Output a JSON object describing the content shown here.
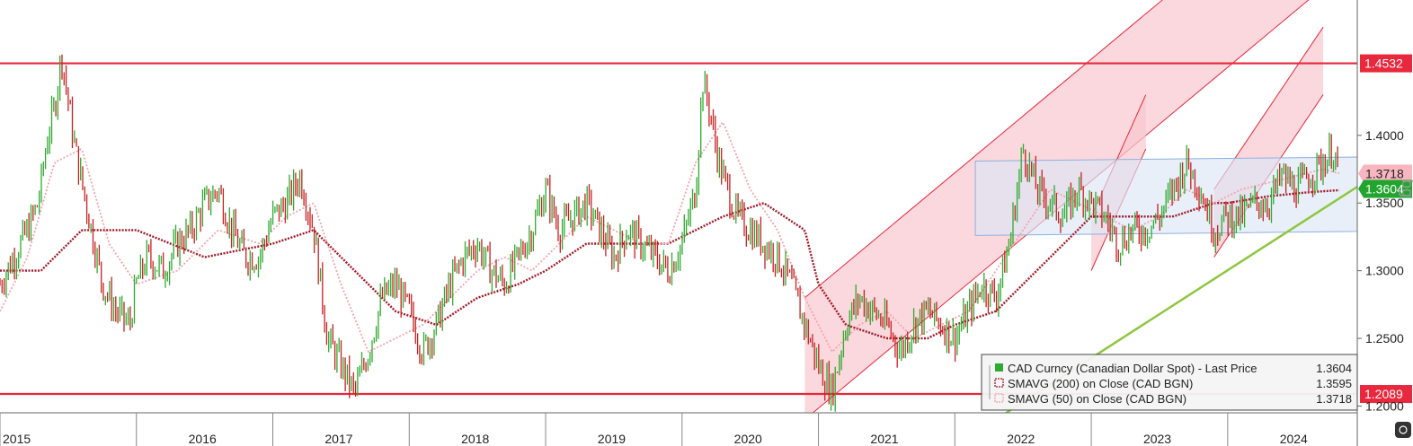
{
  "chart_data": {
    "type": "line",
    "title": "",
    "side_label": "bg",
    "x_ticks": [
      "2015",
      "2016",
      "2017",
      "2018",
      "2019",
      "2020",
      "2021",
      "2022",
      "2023",
      "2024"
    ],
    "xlim": [
      2015.0,
      2024.95
    ],
    "y_ticks": [
      "1.2000",
      "1.2500",
      "1.3000",
      "1.3500",
      "1.4000"
    ],
    "ylim": [
      1.195,
      1.5
    ],
    "horizontal_levels": [
      {
        "value": 1.4532,
        "label": "1.4532",
        "color": "#e8283c"
      },
      {
        "value": 1.2089,
        "label": "1.2089",
        "color": "#e8283c"
      }
    ],
    "price_badges": [
      {
        "value": 1.3718,
        "label": "1.3718",
        "color": "#f9b6c0",
        "text_color": "#222222"
      },
      {
        "value": 1.3604,
        "label": "1.3604",
        "color": "#22a52e",
        "text_color": "#ffffff"
      }
    ],
    "series": [
      {
        "name": "CAD Curncy (Canadian Dollar Spot) - Last Price",
        "value_label": "1.3604",
        "color": "#2eaa2e",
        "down_color": "#c82020",
        "x": [
          2015.0,
          2015.1,
          2015.2,
          2015.28,
          2015.35,
          2015.4,
          2015.45,
          2015.55,
          2015.65,
          2015.75,
          2015.85,
          2015.95,
          2016.0,
          2016.08,
          2016.2,
          2016.3,
          2016.4,
          2016.5,
          2016.6,
          2016.7,
          2016.8,
          2016.9,
          2017.0,
          2017.1,
          2017.2,
          2017.3,
          2017.4,
          2017.5,
          2017.6,
          2017.7,
          2017.8,
          2017.9,
          2018.0,
          2018.1,
          2018.2,
          2018.3,
          2018.4,
          2018.5,
          2018.6,
          2018.7,
          2018.8,
          2018.9,
          2019.0,
          2019.1,
          2019.2,
          2019.3,
          2019.4,
          2019.5,
          2019.6,
          2019.7,
          2019.8,
          2019.9,
          2020.0,
          2020.1,
          2020.15,
          2020.2,
          2020.25,
          2020.3,
          2020.4,
          2020.5,
          2020.6,
          2020.7,
          2020.8,
          2020.9,
          2021.0,
          2021.1,
          2021.2,
          2021.3,
          2021.4,
          2021.5,
          2021.6,
          2021.7,
          2021.8,
          2021.9,
          2022.0,
          2022.1,
          2022.2,
          2022.3,
          2022.4,
          2022.5,
          2022.6,
          2022.7,
          2022.8,
          2022.9,
          2023.0,
          2023.1,
          2023.2,
          2023.3,
          2023.4,
          2023.5,
          2023.6,
          2023.7,
          2023.8,
          2023.9,
          2024.0,
          2024.1,
          2024.2,
          2024.3,
          2024.4,
          2024.5,
          2024.6,
          2024.7,
          2024.78,
          2024.82
        ],
        "values": [
          1.29,
          1.31,
          1.33,
          1.35,
          1.4,
          1.42,
          1.46,
          1.39,
          1.34,
          1.29,
          1.27,
          1.26,
          1.29,
          1.31,
          1.3,
          1.32,
          1.33,
          1.35,
          1.36,
          1.33,
          1.31,
          1.31,
          1.34,
          1.35,
          1.37,
          1.33,
          1.25,
          1.23,
          1.21,
          1.24,
          1.28,
          1.29,
          1.27,
          1.24,
          1.26,
          1.29,
          1.31,
          1.32,
          1.3,
          1.29,
          1.31,
          1.33,
          1.36,
          1.33,
          1.34,
          1.35,
          1.33,
          1.31,
          1.33,
          1.32,
          1.31,
          1.3,
          1.32,
          1.36,
          1.44,
          1.42,
          1.39,
          1.37,
          1.34,
          1.33,
          1.32,
          1.31,
          1.29,
          1.26,
          1.23,
          1.21,
          1.26,
          1.28,
          1.27,
          1.26,
          1.24,
          1.26,
          1.27,
          1.26,
          1.25,
          1.27,
          1.29,
          1.28,
          1.32,
          1.39,
          1.36,
          1.35,
          1.34,
          1.36,
          1.35,
          1.34,
          1.32,
          1.33,
          1.33,
          1.34,
          1.36,
          1.38,
          1.36,
          1.33,
          1.34,
          1.34,
          1.35,
          1.35,
          1.37,
          1.36,
          1.37,
          1.38,
          1.39,
          1.3604
        ]
      },
      {
        "name": "SMAVG (200) on Close (CAD BGN)",
        "value_label": "1.3595",
        "color": "#a01828",
        "x": [
          2015.0,
          2015.3,
          2015.6,
          2016.0,
          2016.5,
          2017.0,
          2017.3,
          2017.6,
          2017.9,
          2018.2,
          2018.5,
          2018.8,
          2019.0,
          2019.3,
          2019.6,
          2019.9,
          2020.1,
          2020.3,
          2020.6,
          2020.9,
          2021.0,
          2021.2,
          2021.5,
          2021.8,
          2022.0,
          2022.3,
          2022.6,
          2022.9,
          2023.0,
          2023.3,
          2023.6,
          2023.9,
          2024.0,
          2024.3,
          2024.6,
          2024.82
        ],
        "values": [
          1.3,
          1.3,
          1.33,
          1.33,
          1.31,
          1.32,
          1.33,
          1.3,
          1.27,
          1.26,
          1.28,
          1.29,
          1.3,
          1.32,
          1.32,
          1.32,
          1.33,
          1.34,
          1.35,
          1.33,
          1.29,
          1.26,
          1.25,
          1.25,
          1.26,
          1.27,
          1.3,
          1.33,
          1.34,
          1.34,
          1.34,
          1.35,
          1.35,
          1.355,
          1.358,
          1.3595
        ]
      },
      {
        "name": "SMAVG (50) on Close (CAD BGN)",
        "value_label": "1.3718",
        "color": "#f4a3ae",
        "x": [
          2015.0,
          2015.2,
          2015.4,
          2015.6,
          2015.8,
          2016.0,
          2016.3,
          2016.6,
          2016.9,
          2017.1,
          2017.3,
          2017.5,
          2017.7,
          2017.9,
          2018.1,
          2018.3,
          2018.5,
          2018.7,
          2018.9,
          2019.1,
          2019.3,
          2019.5,
          2019.7,
          2019.9,
          2020.1,
          2020.3,
          2020.5,
          2020.7,
          2020.9,
          2021.1,
          2021.3,
          2021.5,
          2021.7,
          2021.9,
          2022.1,
          2022.3,
          2022.5,
          2022.7,
          2022.9,
          2023.1,
          2023.3,
          2023.5,
          2023.7,
          2023.9,
          2024.1,
          2024.3,
          2024.5,
          2024.7,
          2024.82
        ],
        "values": [
          1.27,
          1.31,
          1.38,
          1.39,
          1.32,
          1.29,
          1.3,
          1.33,
          1.32,
          1.34,
          1.35,
          1.29,
          1.24,
          1.25,
          1.26,
          1.28,
          1.3,
          1.31,
          1.3,
          1.32,
          1.34,
          1.33,
          1.32,
          1.32,
          1.38,
          1.41,
          1.36,
          1.33,
          1.28,
          1.24,
          1.26,
          1.27,
          1.25,
          1.26,
          1.27,
          1.3,
          1.33,
          1.36,
          1.35,
          1.34,
          1.33,
          1.34,
          1.36,
          1.35,
          1.36,
          1.365,
          1.37,
          1.375,
          1.3718
        ]
      }
    ],
    "annotations": [
      {
        "kind": "channel",
        "points": [
          [
            2020.9,
            1.19
          ],
          [
            2024.95,
            1.53
          ]
        ],
        "width": 0.09,
        "fill": "#f8c8cf",
        "edge": "#e8283c"
      },
      {
        "kind": "channel",
        "points": [
          [
            2023.0,
            1.3
          ],
          [
            2023.4,
            1.39
          ]
        ],
        "width": 0.04,
        "fill": "#f8c8cf",
        "edge": "#e8283c"
      },
      {
        "kind": "channel",
        "points": [
          [
            2023.9,
            1.31
          ],
          [
            2024.7,
            1.43
          ]
        ],
        "width": 0.05,
        "fill": "#f8c8cf",
        "edge": "#e8283c"
      },
      {
        "kind": "range_box",
        "x": [
          2022.15,
          2024.95
        ],
        "y_top": [
          1.381,
          1.384
        ],
        "y_bottom": [
          1.326,
          1.329
        ],
        "fill": "#dbe6f6",
        "edge": "#8fb0e0"
      },
      {
        "kind": "trendline",
        "points": [
          [
            2022.3,
            1.19
          ],
          [
            2024.95,
            1.362
          ]
        ],
        "color": "#8dc63f"
      }
    ],
    "legend": {
      "placement": "bottom-right"
    },
    "grid": false
  }
}
